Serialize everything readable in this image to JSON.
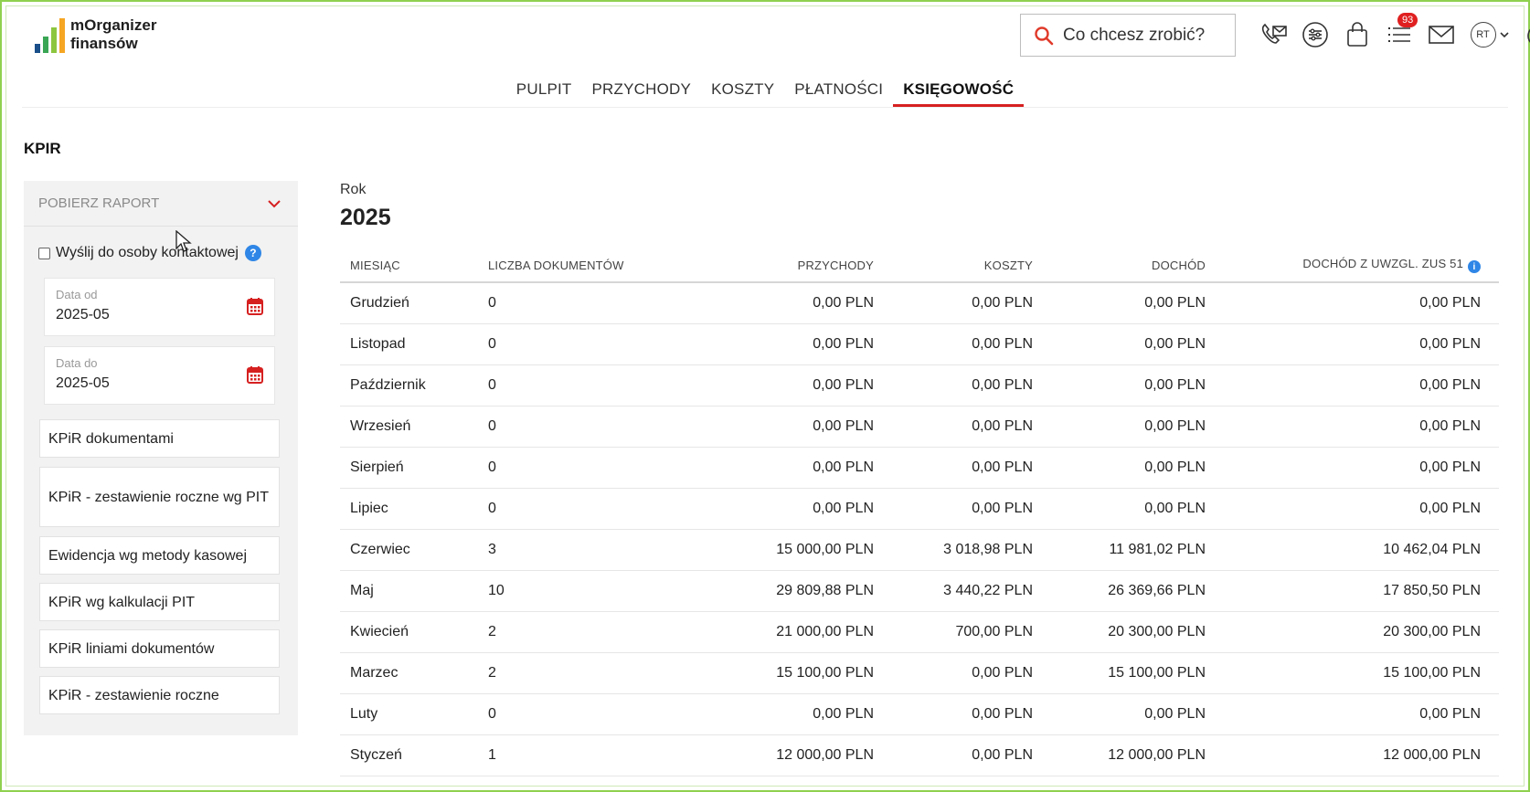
{
  "app": {
    "logo_line1": "mOrganizer",
    "logo_line2": "finansów",
    "logo_bar_colors": [
      "#1a4f8a",
      "#3aa655",
      "#8cc63f",
      "#f5a623"
    ]
  },
  "header": {
    "search_placeholder": "Co chcesz zrobić?",
    "notifications_badge": "93",
    "avatar_initials": "RT"
  },
  "nav": {
    "items": [
      {
        "label": "PULPIT",
        "active": false
      },
      {
        "label": "PRZYCHODY",
        "active": false
      },
      {
        "label": "KOSZTY",
        "active": false
      },
      {
        "label": "PŁATNOŚCI",
        "active": false
      },
      {
        "label": "KSIĘGOWOŚĆ",
        "active": true
      }
    ]
  },
  "page": {
    "title": "KPIR"
  },
  "left_panel": {
    "download_label": "POBIERZ RAPORT",
    "send_contact_label": "Wyślij do osoby kontaktowej",
    "help_glyph": "?",
    "date_from": {
      "label": "Data od",
      "value": "2025-05"
    },
    "date_to": {
      "label": "Data do",
      "value": "2025-05"
    },
    "reports": [
      "KPiR dokumentami",
      "KPiR - zestawienie roczne wg PIT",
      "Ewidencja wg metody kasowej",
      "KPiR wg kalkulacji PIT",
      "KPiR liniami dokumentów",
      "KPiR - zestawienie roczne"
    ]
  },
  "summary": {
    "year_label": "Rok",
    "year_value": "2025",
    "info_glyph": "i",
    "columns": [
      "MIESIĄC",
      "LICZBA DOKUMENTÓW",
      "PRZYCHODY",
      "KOSZTY",
      "DOCHÓD",
      "DOCHÓD Z UWZGL. ZUS 51"
    ],
    "rows": [
      [
        "Grudzień",
        "0",
        "0,00 PLN",
        "0,00 PLN",
        "0,00 PLN",
        "0,00 PLN"
      ],
      [
        "Listopad",
        "0",
        "0,00 PLN",
        "0,00 PLN",
        "0,00 PLN",
        "0,00 PLN"
      ],
      [
        "Październik",
        "0",
        "0,00 PLN",
        "0,00 PLN",
        "0,00 PLN",
        "0,00 PLN"
      ],
      [
        "Wrzesień",
        "0",
        "0,00 PLN",
        "0,00 PLN",
        "0,00 PLN",
        "0,00 PLN"
      ],
      [
        "Sierpień",
        "0",
        "0,00 PLN",
        "0,00 PLN",
        "0,00 PLN",
        "0,00 PLN"
      ],
      [
        "Lipiec",
        "0",
        "0,00 PLN",
        "0,00 PLN",
        "0,00 PLN",
        "0,00 PLN"
      ],
      [
        "Czerwiec",
        "3",
        "15 000,00 PLN",
        "3 018,98 PLN",
        "11 981,02 PLN",
        "10 462,04 PLN"
      ],
      [
        "Maj",
        "10",
        "29 809,88 PLN",
        "3 440,22 PLN",
        "26 369,66 PLN",
        "17 850,50 PLN"
      ],
      [
        "Kwiecień",
        "2",
        "21 000,00 PLN",
        "700,00 PLN",
        "20 300,00 PLN",
        "20 300,00 PLN"
      ],
      [
        "Marzec",
        "2",
        "15 100,00 PLN",
        "0,00 PLN",
        "15 100,00 PLN",
        "15 100,00 PLN"
      ],
      [
        "Luty",
        "0",
        "0,00 PLN",
        "0,00 PLN",
        "0,00 PLN",
        "0,00 PLN"
      ],
      [
        "Styczeń",
        "1",
        "12 000,00 PLN",
        "0,00 PLN",
        "12 000,00 PLN",
        "12 000,00 PLN"
      ]
    ]
  },
  "colors": {
    "accent_red": "#d62020",
    "info_blue": "#2f86e6",
    "frame_green": "#8fd14f"
  }
}
